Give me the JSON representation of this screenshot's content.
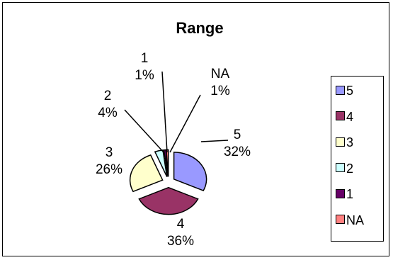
{
  "chart_data": {
    "type": "pie",
    "title": "Range",
    "slices": [
      {
        "label": "5",
        "value": 32,
        "percent_text": "32%",
        "color": "#9999ff"
      },
      {
        "label": "4",
        "value": 36,
        "percent_text": "36%",
        "color": "#993366"
      },
      {
        "label": "3",
        "value": 26,
        "percent_text": "26%",
        "color": "#ffffcc"
      },
      {
        "label": "2",
        "value": 4,
        "percent_text": "4%",
        "color": "#ccffff"
      },
      {
        "label": "1",
        "value": 1,
        "percent_text": "1%",
        "color": "#660066"
      },
      {
        "label": "NA",
        "value": 1,
        "percent_text": "1%",
        "color": "#ff8080"
      }
    ],
    "legend": {
      "placement": "right",
      "entries": [
        "5",
        "4",
        "3",
        "2",
        "1",
        "NA"
      ]
    },
    "exploded": true
  }
}
